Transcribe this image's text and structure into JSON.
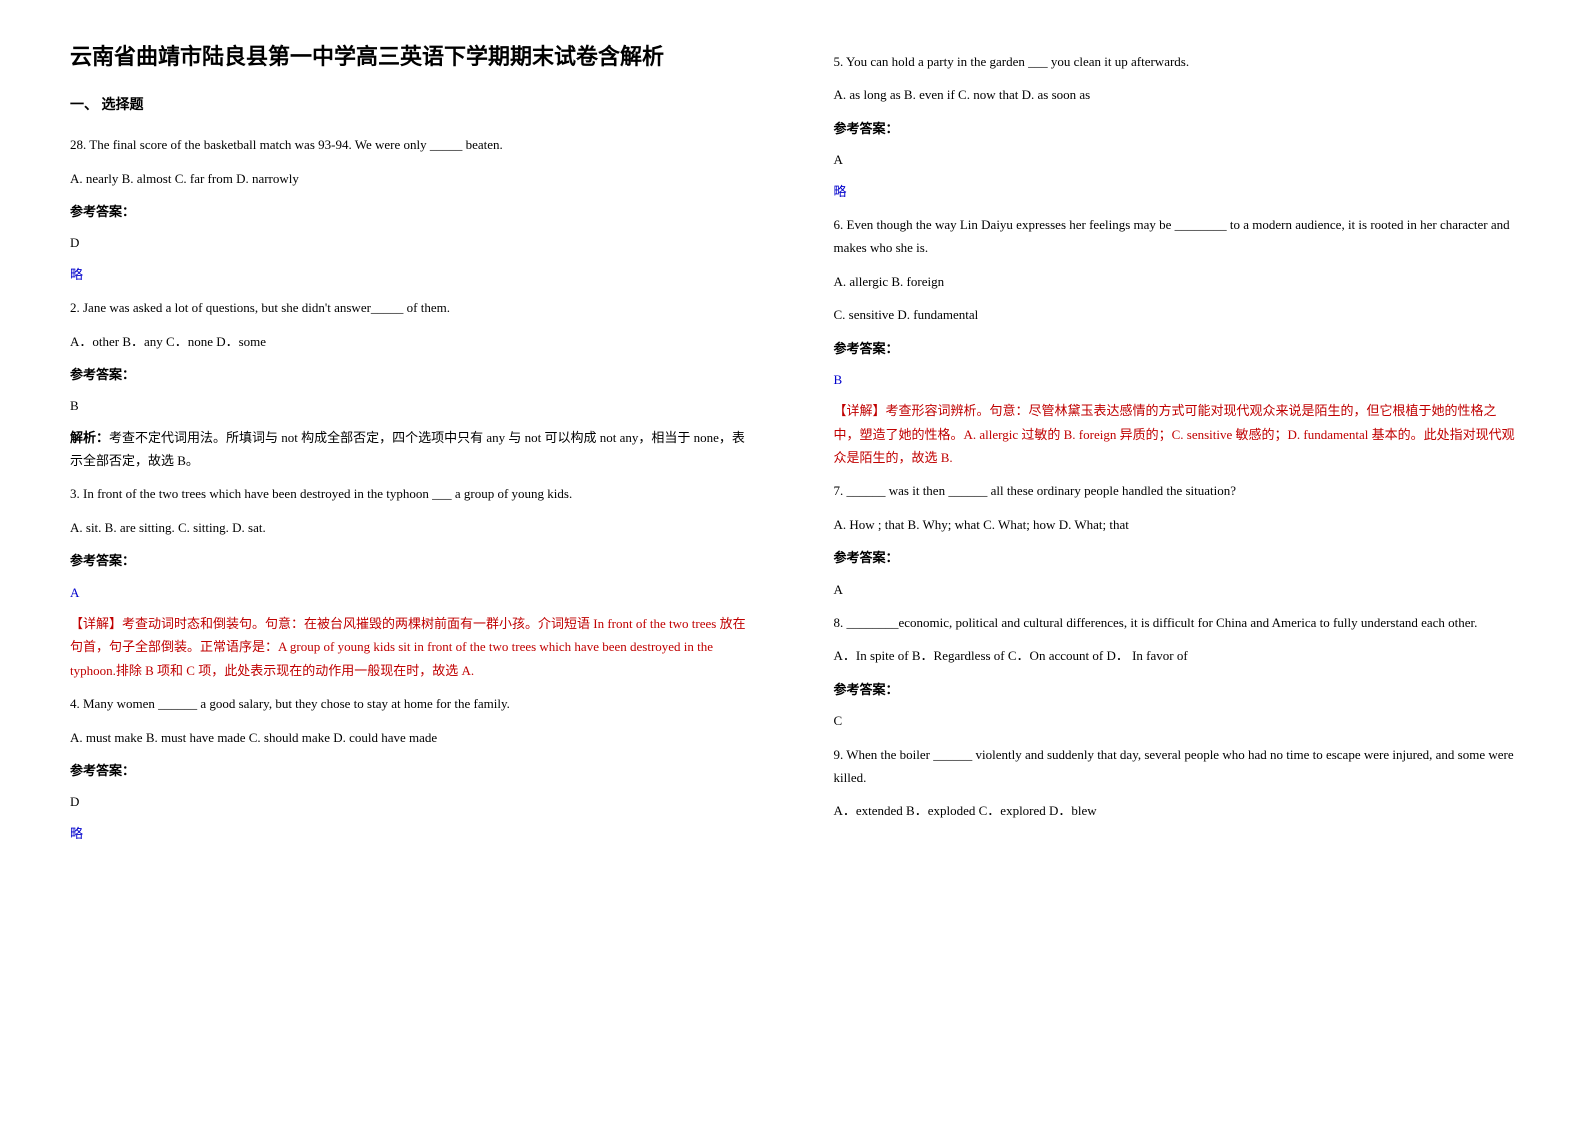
{
  "title": "云南省曲靖市陆良县第一中学高三英语下学期期末试卷含解析",
  "section1_header": "一、 选择题",
  "q1_text": "28. The final score of the basketball match was 93-94. We were only _____ beaten.",
  "q1_opts": "    A. nearly       B. almost       C. far from       D. narrowly",
  "answer_label": "参考答案：",
  "q1_answer": "D",
  "q1_note": "略",
  "q2_text": "2. Jane was asked a lot of questions, but she didn't answer_____ of them.",
  "q2_opts": "  A．other  B．any  C．none  D．some",
  "q2_answer": "B",
  "q2_explain": "解析：考查不定代词用法。所填词与 not 构成全部否定，四个选项中只有 any 与 not 可以构成 not any，相当于 none，表示全部否定，故选 B。",
  "q3_text": "3. In front of the two trees which have been destroyed in the typhoon ___ a group of young kids.",
  "q3_opts": "A. sit.   B. are sitting.   C. sitting.   D. sat.",
  "q3_answer": "A",
  "q3_explain": "【详解】考查动词时态和倒装句。句意：在被台风摧毁的两棵树前面有一群小孩。介词短语 In front of the two trees 放在句首，句子全部倒装。正常语序是：A group of young kids sit in front of the two trees which have been destroyed in the typhoon.排除 B 项和 C 项，此处表示现在的动作用一般现在时，故选 A.",
  "q4_text": "4. Many women ______ a good salary, but they chose to stay at home for the family.",
  "q4_opts": "     A. must make          B. must have made          C. should make          D. could have made",
  "q4_answer": "D",
  "q4_note": "略",
  "q5_text": "5. You can hold a party in the garden ___ you clean it up afterwards.",
  "q5_opts": "    A. as long as        B. even if                    C. now that                     D. as soon as",
  "q5_answer": "A",
  "q5_note": "略",
  "q6_text": "6. Even though the way Lin Daiyu expresses her feelings may be ________  to a modern audience, it is rooted in her character and makes who she is.",
  "q6_opts1": "A. allergic   B. foreign",
  "q6_opts2": "C. sensitive   D. fundamental",
  "q6_answer": "B",
  "q6_explain": "【详解】考查形容词辨析。句意：尽管林黛玉表达感情的方式可能对现代观众来说是陌生的，但它根植于她的性格之中，塑造了她的性格。A. allergic 过敏的 B. foreign 异质的；C. sensitive 敏感的；D. fundamental 基本的。此处指对现代观众是陌生的，故选 B.",
  "q7_text": "7. ______ was it then ______ all these ordinary people handled the situation?",
  "q7_opts": "  A. How ; that      B. Why; what      C. What; how      D. What; that",
  "q7_answer": "A",
  "q8_text": "8. ________economic, political and cultural differences, it is difficult for China and America to fully understand each other.",
  "q8_opts": "A．In spite of    B．Regardless of    C．On account of         D． In favor of",
  "q8_answer": "C",
  "q9_text": "9. When the boiler ______ violently and suddenly that day, several people who had no time to escape were injured, and some were killed.",
  "q9_opts1": "A．extended                     B．exploded                             C．explored                          D．blew"
}
